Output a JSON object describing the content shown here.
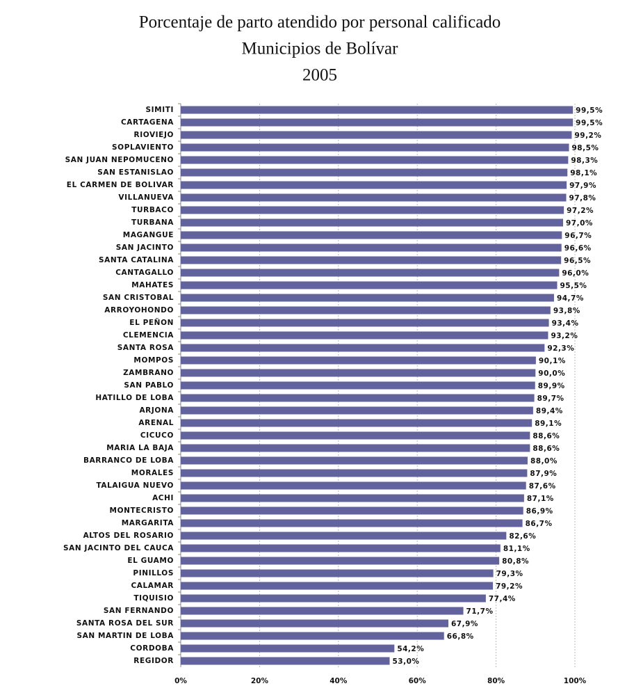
{
  "chart_data": {
    "type": "barh",
    "title": "Porcentaje de parto atendido por personal calificado",
    "subtitle": [
      "Municipios de Bolívar",
      "2005"
    ],
    "color": "#62629c",
    "grid": true,
    "categories": [
      "SIMITI",
      "CARTAGENA",
      "RIOVIEJO",
      "SOPLAVIENTO",
      "SAN JUAN NEPOMUCENO",
      "SAN ESTANISLAO",
      "EL CARMEN DE BOLIVAR",
      "VILLANUEVA",
      "TURBACO",
      "TURBANA",
      "MAGANGUE",
      "SAN JACINTO",
      "SANTA CATALINA",
      "CANTAGALLO",
      "MAHATES",
      "SAN CRISTOBAL",
      "ARROYOHONDO",
      "EL PEÑON",
      "CLEMENCIA",
      "SANTA ROSA",
      "MOMPOS",
      "ZAMBRANO",
      "SAN PABLO",
      "HATILLO DE LOBA",
      "ARJONA",
      "ARENAL",
      "CICUCO",
      "MARIA LA BAJA",
      "BARRANCO DE LOBA",
      "MORALES",
      "TALAIGUA NUEVO",
      "ACHI",
      "MONTECRISTO",
      "MARGARITA",
      "ALTOS DEL ROSARIO",
      "SAN JACINTO DEL CAUCA",
      "EL GUAMO",
      "PINILLOS",
      "CALAMAR",
      "TIQUISIO",
      "SAN FERNANDO",
      "SANTA ROSA DEL SUR",
      "SAN MARTIN DE LOBA",
      "CORDOBA",
      "REGIDOR"
    ],
    "values": [
      99.5,
      99.5,
      99.2,
      98.5,
      98.3,
      98.1,
      97.9,
      97.8,
      97.2,
      97.0,
      96.7,
      96.6,
      96.5,
      96.0,
      95.5,
      94.7,
      93.8,
      93.4,
      93.2,
      92.3,
      90.1,
      90.0,
      89.9,
      89.7,
      89.4,
      89.1,
      88.6,
      88.6,
      88.0,
      87.9,
      87.6,
      87.1,
      86.9,
      86.7,
      82.6,
      81.1,
      80.8,
      79.3,
      79.2,
      77.4,
      71.7,
      67.9,
      66.8,
      54.2,
      53.0
    ],
    "value_labels": [
      "99,5%",
      "99,5%",
      "99,2%",
      "98,5%",
      "98,3%",
      "98,1%",
      "97,9%",
      "97,8%",
      "97,2%",
      "97,0%",
      "96,7%",
      "96,6%",
      "96,5%",
      "96,0%",
      "95,5%",
      "94,7%",
      "93,8%",
      "93,4%",
      "93,2%",
      "92,3%",
      "90,1%",
      "90,0%",
      "89,9%",
      "89,7%",
      "89,4%",
      "89,1%",
      "88,6%",
      "88,6%",
      "88,0%",
      "87,9%",
      "87,6%",
      "87,1%",
      "86,9%",
      "86,7%",
      "82,6%",
      "81,1%",
      "80,8%",
      "79,3%",
      "79,2%",
      "77,4%",
      "71,7%",
      "67,9%",
      "66,8%",
      "54,2%",
      "53,0%"
    ],
    "xlim": [
      0,
      100
    ],
    "xticks": [
      {
        "value": 0,
        "label": "0%"
      },
      {
        "value": 20,
        "label": "20%"
      },
      {
        "value": 40,
        "label": "40%"
      },
      {
        "value": 60,
        "label": "60%"
      },
      {
        "value": 80,
        "label": "80%"
      },
      {
        "value": 100,
        "label": "100%"
      }
    ]
  }
}
